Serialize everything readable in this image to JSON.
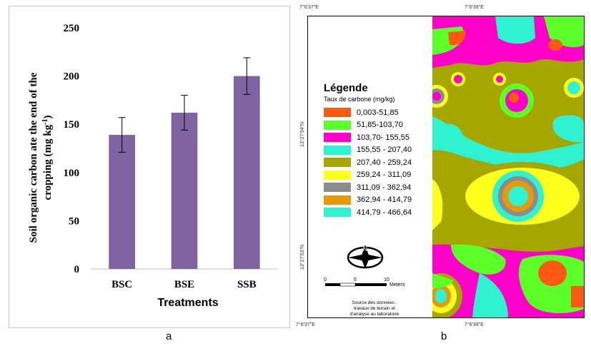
{
  "panel_a": {
    "caption": "a",
    "chart_data": {
      "type": "bar",
      "title": "",
      "xlabel": "Treatments",
      "ylabel": "Soil organic carbon ate the end of the cropping (mg kg-1)",
      "ylabel_line1": "Soil organic carbon ate the end of the",
      "ylabel_line2": "cropping (mg kg",
      "ylabel_sup": "-1",
      "ylabel_close": ")",
      "categories": [
        "BSC",
        "BSE",
        "SSB"
      ],
      "values": [
        139,
        162,
        200
      ],
      "errors": [
        18,
        18,
        19
      ],
      "ylim": [
        0,
        250
      ],
      "yticks": [
        0,
        50,
        100,
        150,
        200,
        250
      ],
      "grid": false,
      "bar_color": "#8064A2"
    }
  },
  "panel_b": {
    "caption": "b",
    "coords": {
      "top_left": "7°6'37\"E",
      "top_right": "7°6'38\"E",
      "bottom_left": "7°6'37\"E",
      "bottom_right": "7°6'38\"E",
      "left_upper": "13°27'54\"N",
      "left_lower": "13°27'53\"N"
    },
    "legend": {
      "title": "Légende",
      "subtitle": "Taux de carbone (mg/kg)",
      "items": [
        {
          "label": "0,003-51,85",
          "color": "#FF5A14"
        },
        {
          "label": "51,85-103,70",
          "color": "#5CFF2A"
        },
        {
          "label": "103,70- 155,55",
          "color": "#FF00C8"
        },
        {
          "label": "155,55 - 207,40",
          "color": "#2EF2D0"
        },
        {
          "label": "207,40 - 259,24",
          "color": "#A6A600"
        },
        {
          "label": "259,24 - 311,09",
          "color": "#FFFF1E"
        },
        {
          "label": "311,09 - 362,94",
          "color": "#8C8C8C"
        },
        {
          "label": "362,94 - 414,79",
          "color": "#E69A0A"
        },
        {
          "label": "414,79 - 466,64",
          "color": "#2EF2D0"
        }
      ]
    },
    "scale": {
      "t0": "0",
      "t1": "5",
      "t2": "10",
      "unit": "Meters"
    },
    "north_label": "N",
    "source_lines": [
      "Source des données :",
      "travaux de terrain et",
      "d'analyse au laboratoire"
    ]
  }
}
